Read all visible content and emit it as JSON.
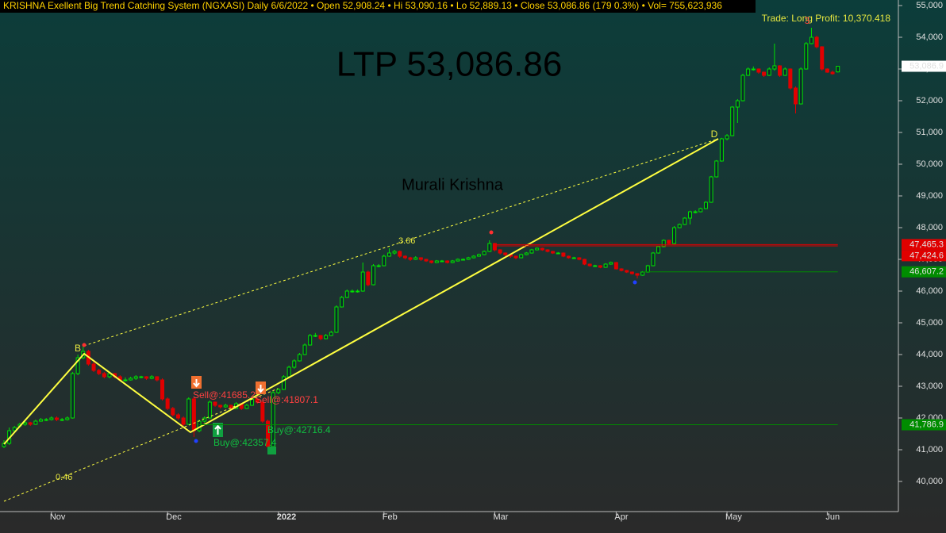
{
  "chart_data": {
    "type": "candlestick",
    "header": "KRISHNA Exellent Big Trend Catching System (NGXASI) Daily  6/6/2022  •  Open 52,908.24  •  Hi 53,090.16  •  Lo 52,889.13  •  Close 53,086.86 (179 0.3%)  •  Vol= 755,623,936",
    "annotations": {
      "ltp": "LTP 53,086.86",
      "watermark": "Murali Krishna",
      "trade": "Trade: Long Profit: 10,370.418",
      "wave_b": "B",
      "wave_d": "D",
      "wave_3": "3",
      "ratio_upper": "3.66",
      "ratio_lower": "0.46",
      "sell_1": "Sell@:41685.2",
      "sell_2": "Sell@:41807.1",
      "buy_1": "Buy@:42357.4",
      "buy_2": "Buy@:42716.4"
    },
    "up_color": "#00e000",
    "down_color": "#e00000",
    "categories": [
      null,
      null,
      null,
      null,
      null,
      null,
      null,
      null,
      null,
      "Nov",
      null,
      null,
      null,
      null,
      null,
      null,
      null,
      null,
      null,
      null,
      null,
      null,
      null,
      null,
      null,
      null,
      null,
      null,
      null,
      null,
      null,
      "Dec",
      null,
      null,
      null,
      null,
      null,
      null,
      null,
      null,
      null,
      null,
      null,
      null,
      null,
      null,
      null,
      null,
      null,
      null,
      null,
      null,
      "2022",
      null,
      null,
      null,
      null,
      null,
      null,
      null,
      null,
      null,
      null,
      null,
      null,
      null,
      null,
      null,
      null,
      null,
      null,
      null,
      "Feb",
      null,
      null,
      null,
      null,
      null,
      null,
      null,
      null,
      null,
      null,
      null,
      null,
      null,
      null,
      null,
      null,
      null,
      null,
      null,
      null,
      "Mar",
      null,
      null,
      null,
      null,
      null,
      null,
      null,
      null,
      null,
      null,
      null,
      null,
      null,
      null,
      null,
      null,
      null,
      null,
      null,
      null,
      null,
      null,
      "Apr",
      null,
      null,
      null,
      null,
      null,
      null,
      null,
      null,
      null,
      null,
      null,
      null,
      null,
      null,
      null,
      null,
      null,
      null,
      null,
      null,
      "May",
      null,
      null,
      null,
      null,
      null,
      null,
      null,
      null,
      null,
      null,
      null,
      null,
      null,
      null,
      null,
      null,
      null,
      null,
      "Jun",
      null,
      null
    ],
    "candles": [
      [
        41100,
        41300,
        41050,
        41200
      ],
      [
        41200,
        41700,
        41150,
        41600
      ],
      [
        41600,
        41750,
        41550,
        41700
      ],
      [
        41750,
        41850,
        41700,
        41800
      ],
      [
        41800,
        41900,
        41750,
        41850
      ],
      [
        41850,
        41880,
        41750,
        41800
      ],
      [
        41800,
        41950,
        41780,
        41900
      ],
      [
        41900,
        42000,
        41880,
        41950
      ],
      [
        41950,
        42000,
        41900,
        41950
      ],
      [
        41950,
        42050,
        41920,
        42000
      ],
      [
        42000,
        42050,
        41900,
        41950
      ],
      [
        41950,
        42000,
        41900,
        41950
      ],
      [
        41950,
        42050,
        41920,
        42000
      ],
      [
        42000,
        43450,
        41980,
        43400
      ],
      [
        43400,
        44000,
        43350,
        43900
      ],
      [
        43900,
        44300,
        43850,
        44100
      ],
      [
        44100,
        44150,
        43650,
        43700
      ],
      [
        43700,
        43800,
        43450,
        43500
      ],
      [
        43500,
        43550,
        43350,
        43400
      ],
      [
        43400,
        43450,
        43250,
        43300
      ],
      [
        43300,
        43450,
        43250,
        43400
      ],
      [
        43400,
        43420,
        43250,
        43300
      ],
      [
        43300,
        43350,
        43150,
        43200
      ],
      [
        43200,
        43280,
        43150,
        43200
      ],
      [
        43200,
        43300,
        43180,
        43250
      ],
      [
        43250,
        43350,
        43200,
        43300
      ],
      [
        43300,
        43330,
        43250,
        43300
      ],
      [
        43300,
        43320,
        43200,
        43250
      ],
      [
        43250,
        43350,
        43220,
        43300
      ],
      [
        43300,
        43320,
        43150,
        43200
      ],
      [
        43200,
        43250,
        42550,
        42600
      ],
      [
        42600,
        42650,
        42250,
        42300
      ],
      [
        42300,
        42350,
        42050,
        42100
      ],
      [
        42100,
        42150,
        41950,
        42000
      ],
      [
        42000,
        42050,
        41750,
        41800
      ],
      [
        41800,
        42650,
        41780,
        42600
      ],
      [
        42600,
        42650,
        41400,
        41600
      ],
      [
        41600,
        41950,
        41550,
        41900
      ],
      [
        41900,
        42050,
        41850,
        42000
      ],
      [
        42000,
        42550,
        41980,
        42500
      ],
      [
        42500,
        42520,
        42350,
        42400
      ],
      [
        42400,
        42420,
        42300,
        42350
      ],
      [
        42350,
        42450,
        42320,
        42400
      ],
      [
        42400,
        42420,
        42250,
        42300
      ],
      [
        42300,
        42500,
        42280,
        42450
      ],
      [
        42450,
        42470,
        42250,
        42300
      ],
      [
        42300,
        42450,
        42280,
        42400
      ],
      [
        42400,
        42650,
        42380,
        42600
      ],
      [
        42600,
        42620,
        42450,
        42500
      ],
      [
        42500,
        42520,
        41850,
        41900
      ],
      [
        41900,
        41950,
        41000,
        41100
      ],
      [
        41100,
        42850,
        41050,
        42800
      ],
      [
        42800,
        42950,
        42750,
        42900
      ],
      [
        42900,
        43350,
        42880,
        43300
      ],
      [
        43300,
        43650,
        43280,
        43600
      ],
      [
        43600,
        43850,
        43550,
        43800
      ],
      [
        43800,
        44050,
        43780,
        44000
      ],
      [
        44000,
        44350,
        43980,
        44300
      ],
      [
        44300,
        44650,
        44280,
        44600
      ],
      [
        44600,
        44680,
        44550,
        44600
      ],
      [
        44600,
        44620,
        44450,
        44500
      ],
      [
        44500,
        44650,
        44480,
        44600
      ],
      [
        44600,
        44750,
        44580,
        44700
      ],
      [
        44700,
        45550,
        44680,
        45500
      ],
      [
        45500,
        45850,
        45480,
        45800
      ],
      [
        45800,
        46050,
        45780,
        46000
      ],
      [
        46000,
        46050,
        45950,
        46000
      ],
      [
        46000,
        46050,
        45950,
        46000
      ],
      [
        46000,
        46900,
        45980,
        46600
      ],
      [
        46600,
        46650,
        46150,
        46200
      ],
      [
        46200,
        46850,
        46180,
        46800
      ],
      [
        46800,
        46850,
        46750,
        46800
      ],
      [
        46800,
        47150,
        46780,
        47100
      ],
      [
        47100,
        47350,
        47080,
        47200
      ],
      [
        47200,
        47300,
        47150,
        47250
      ],
      [
        47250,
        47280,
        47050,
        47100
      ],
      [
        47100,
        47130,
        47000,
        47050
      ],
      [
        47050,
        47080,
        46950,
        47000
      ],
      [
        47000,
        47100,
        46980,
        47050
      ],
      [
        47050,
        47070,
        46950,
        47000
      ],
      [
        47000,
        47020,
        46920,
        46950
      ],
      [
        46950,
        46970,
        46870,
        46900
      ],
      [
        46900,
        46980,
        46880,
        46950
      ],
      [
        46950,
        46980,
        46920,
        46950
      ],
      [
        46950,
        46970,
        46870,
        46900
      ],
      [
        46900,
        46980,
        46880,
        46950
      ],
      [
        46950,
        47030,
        46930,
        47000
      ],
      [
        47000,
        47030,
        46970,
        47000
      ],
      [
        47000,
        47080,
        46980,
        47050
      ],
      [
        47050,
        47130,
        47030,
        47100
      ],
      [
        47100,
        47180,
        47080,
        47150
      ],
      [
        47150,
        47280,
        47130,
        47250
      ],
      [
        47250,
        47600,
        47230,
        47500
      ],
      [
        47500,
        47520,
        47250,
        47300
      ],
      [
        47300,
        47320,
        47150,
        47200
      ],
      [
        47200,
        47220,
        47100,
        47150
      ],
      [
        47150,
        47170,
        47050,
        47100
      ],
      [
        47100,
        47120,
        47000,
        47050
      ],
      [
        47050,
        47180,
        47030,
        47150
      ],
      [
        47150,
        47230,
        47130,
        47200
      ],
      [
        47200,
        47330,
        47180,
        47300
      ],
      [
        47300,
        47380,
        47280,
        47350
      ],
      [
        47350,
        47370,
        47270,
        47300
      ],
      [
        47300,
        47320,
        47220,
        47250
      ],
      [
        47250,
        47270,
        47170,
        47200
      ],
      [
        47200,
        47230,
        47170,
        47200
      ],
      [
        47200,
        47220,
        47070,
        47100
      ],
      [
        47100,
        47120,
        47020,
        47050
      ],
      [
        47050,
        47080,
        47020,
        47050
      ],
      [
        47050,
        47070,
        46970,
        47000
      ],
      [
        47000,
        47020,
        46820,
        46850
      ],
      [
        46850,
        46870,
        46770,
        46800
      ],
      [
        46800,
        46830,
        46770,
        46800
      ],
      [
        46800,
        46820,
        46720,
        46750
      ],
      [
        46750,
        46880,
        46730,
        46850
      ],
      [
        46850,
        46930,
        46830,
        46900
      ],
      [
        46900,
        46920,
        46680,
        46700
      ],
      [
        46700,
        46720,
        46620,
        46650
      ],
      [
        46650,
        46670,
        46570,
        46600
      ],
      [
        46600,
        46620,
        46520,
        46550
      ],
      [
        46550,
        46570,
        46400,
        46500
      ],
      [
        46500,
        46630,
        46480,
        46600
      ],
      [
        46600,
        46830,
        46580,
        46800
      ],
      [
        46800,
        47230,
        46780,
        47200
      ],
      [
        47200,
        47430,
        47180,
        47400
      ],
      [
        47400,
        47630,
        47380,
        47600
      ],
      [
        47600,
        47620,
        47480,
        47500
      ],
      [
        47500,
        48050,
        47480,
        48000
      ],
      [
        48000,
        48130,
        47980,
        48100
      ],
      [
        48100,
        48330,
        48080,
        48300
      ],
      [
        48300,
        48530,
        48100,
        48500
      ],
      [
        48500,
        48550,
        48450,
        48500
      ],
      [
        48500,
        48630,
        48480,
        48600
      ],
      [
        48600,
        48830,
        48580,
        48800
      ],
      [
        48800,
        49630,
        48780,
        49600
      ],
      [
        49600,
        50130,
        49580,
        50100
      ],
      [
        50100,
        50830,
        50080,
        50800
      ],
      [
        50800,
        50950,
        50750,
        50900
      ],
      [
        50900,
        51830,
        50880,
        51800
      ],
      [
        51800,
        52050,
        51300,
        52000
      ],
      [
        52000,
        52850,
        51980,
        52800
      ],
      [
        52800,
        53050,
        52780,
        53000
      ],
      [
        53000,
        53080,
        52950,
        53000
      ],
      [
        53000,
        53020,
        52850,
        52900
      ],
      [
        52900,
        52920,
        52750,
        52800
      ],
      [
        52800,
        53050,
        52780,
        53000
      ],
      [
        53000,
        53800,
        52950,
        53100
      ],
      [
        53100,
        53120,
        52750,
        52800
      ],
      [
        52800,
        53050,
        52780,
        53000
      ],
      [
        53000,
        53020,
        52350,
        52400
      ],
      [
        52400,
        52450,
        51600,
        51900
      ],
      [
        51900,
        53050,
        51880,
        53000
      ],
      [
        53000,
        53850,
        52980,
        53800
      ],
      [
        53800,
        54300,
        53780,
        54000
      ],
      [
        54000,
        54050,
        53650,
        53700
      ],
      [
        53700,
        53720,
        52950,
        53000
      ],
      [
        53000,
        53020,
        52880,
        52900
      ],
      [
        52900,
        52950,
        52820,
        52850
      ],
      [
        52908.24,
        53090.16,
        52889.13,
        53086.86
      ]
    ],
    "ylim": [
      38975,
      55175
    ],
    "yticks": [
      {
        "value": 40000,
        "label": "40,000"
      },
      {
        "value": 41000,
        "label": "41,000"
      },
      {
        "value": 42000,
        "label": "42,000"
      },
      {
        "value": 43000,
        "label": "43,000"
      },
      {
        "value": 44000,
        "label": "44,000"
      },
      {
        "value": 45000,
        "label": "45,000"
      },
      {
        "value": 46000,
        "label": "46,000"
      },
      {
        "value": 47000,
        "label": "47,000"
      },
      {
        "value": 48000,
        "label": "48,000"
      },
      {
        "value": 49000,
        "label": "49,000"
      },
      {
        "value": 50000,
        "label": "50,000"
      },
      {
        "value": 51000,
        "label": "51,000"
      },
      {
        "value": 52000,
        "label": "52,000"
      },
      {
        "value": 53000,
        "label": "53,000"
      },
      {
        "value": 54000,
        "label": "54,000"
      },
      {
        "value": 55000,
        "label": "55,000"
      }
    ],
    "levels": [
      {
        "value": 53086.9,
        "label": "53,086.9",
        "color": "#ffffff"
      },
      {
        "value": 47465.3,
        "label": "47,465.3",
        "color": "#e00000"
      },
      {
        "value": 47424.6,
        "label": "47,424.6",
        "color": "#e00000"
      },
      {
        "value": 46607.2,
        "label": "46,607.2",
        "color": "#008c00"
      },
      {
        "value": 41786.9,
        "label": "41,786.9",
        "color": "#008c00"
      }
    ]
  }
}
